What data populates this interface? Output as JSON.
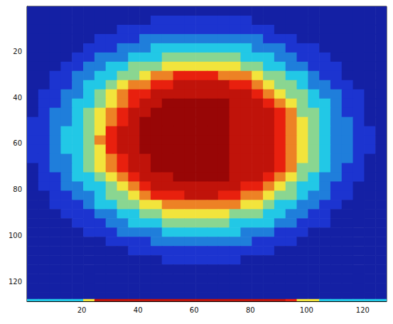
{
  "chart_data": {
    "type": "heatmap",
    "x_edges": [
      0.5,
      4.5,
      8.5,
      12.5,
      16.5,
      20.5,
      24.5,
      28.5,
      32.5,
      36.5,
      40.5,
      44.5,
      48.5,
      52.5,
      56.5,
      60.5,
      64.5,
      68.5,
      72.5,
      76.5,
      80.5,
      84.5,
      88.5,
      92.5,
      96.5,
      100.5,
      104.5,
      108.5,
      112.5,
      116.5,
      120.5,
      124.5,
      128.5
    ],
    "y_edges": [
      0.5,
      4.5,
      8.5,
      12.5,
      16.5,
      20.5,
      24.5,
      28.5,
      32.5,
      36.5,
      40.5,
      44.5,
      48.5,
      52.5,
      56.5,
      60.5,
      64.5,
      68.5,
      72.5,
      76.5,
      80.5,
      84.5,
      88.5,
      92.5,
      96.5,
      100.5,
      104.5,
      108.5,
      112.5,
      116.5,
      120.5,
      124.5,
      127.5,
      128.5
    ],
    "cells": [
      [
        1,
        1,
        1,
        1,
        1,
        1,
        1,
        1,
        1,
        1,
        1,
        1,
        1,
        1,
        1,
        1,
        1,
        1,
        1,
        1,
        1,
        1,
        1,
        1,
        1,
        1,
        1,
        1,
        1,
        1,
        1,
        1
      ],
      [
        1,
        1,
        1,
        1,
        1,
        1,
        1,
        1,
        1,
        1,
        1,
        2,
        2,
        2,
        2,
        2,
        2,
        2,
        2,
        2,
        1,
        1,
        1,
        1,
        1,
        1,
        1,
        1,
        1,
        1,
        1,
        1
      ],
      [
        1,
        1,
        1,
        1,
        1,
        1,
        1,
        1,
        2,
        2,
        2,
        2,
        2,
        2,
        2,
        2,
        2,
        2,
        2,
        2,
        2,
        2,
        1,
        1,
        1,
        1,
        1,
        1,
        1,
        1,
        1,
        1
      ],
      [
        1,
        1,
        1,
        1,
        1,
        1,
        2,
        2,
        2,
        2,
        3,
        3,
        3,
        3,
        3,
        3,
        3,
        3,
        3,
        3,
        3,
        2,
        2,
        2,
        1,
        1,
        1,
        1,
        1,
        1,
        1,
        1
      ],
      [
        1,
        1,
        1,
        1,
        1,
        2,
        2,
        2,
        3,
        3,
        3,
        4,
        4,
        4,
        4,
        4,
        4,
        4,
        4,
        4,
        3,
        3,
        3,
        2,
        2,
        2,
        1,
        1,
        1,
        1,
        1,
        1
      ],
      [
        1,
        1,
        1,
        1,
        2,
        2,
        3,
        3,
        3,
        4,
        4,
        4,
        5,
        5,
        5,
        5,
        5,
        5,
        5,
        4,
        4,
        4,
        3,
        3,
        2,
        2,
        2,
        1,
        1,
        1,
        1,
        1
      ],
      [
        1,
        1,
        1,
        2,
        2,
        3,
        3,
        4,
        4,
        5,
        5,
        5,
        6,
        6,
        6,
        6,
        6,
        6,
        6,
        5,
        5,
        4,
        4,
        3,
        3,
        2,
        2,
        2,
        1,
        1,
        1,
        1
      ],
      [
        1,
        1,
        2,
        2,
        3,
        3,
        4,
        4,
        5,
        5,
        6,
        7,
        7,
        8,
        8,
        8,
        8,
        7,
        7,
        7,
        6,
        5,
        5,
        4,
        4,
        3,
        2,
        2,
        1,
        1,
        1,
        1
      ],
      [
        1,
        1,
        2,
        2,
        3,
        4,
        4,
        5,
        6,
        7,
        7,
        8,
        8,
        9,
        9,
        9,
        9,
        9,
        8,
        8,
        7,
        6,
        5,
        5,
        4,
        3,
        3,
        2,
        2,
        1,
        1,
        1
      ],
      [
        1,
        2,
        2,
        3,
        3,
        4,
        5,
        6,
        7,
        8,
        8,
        9,
        9,
        9,
        9,
        9,
        9,
        9,
        9,
        9,
        8,
        7,
        6,
        5,
        5,
        4,
        3,
        3,
        2,
        2,
        1,
        1
      ],
      [
        1,
        2,
        2,
        3,
        4,
        4,
        5,
        6,
        7,
        8,
        9,
        9,
        10,
        10,
        10,
        10,
        10,
        10,
        9,
        9,
        9,
        8,
        7,
        6,
        5,
        4,
        4,
        3,
        2,
        2,
        1,
        1
      ],
      [
        1,
        2,
        3,
        3,
        4,
        5,
        6,
        7,
        8,
        9,
        9,
        10,
        10,
        10,
        10,
        10,
        10,
        10,
        9,
        9,
        9,
        9,
        8,
        7,
        5,
        5,
        4,
        3,
        2,
        2,
        1,
        1
      ],
      [
        2,
        2,
        3,
        3,
        4,
        5,
        6,
        7,
        8,
        9,
        10,
        10,
        10,
        10,
        10,
        10,
        10,
        10,
        9,
        9,
        9,
        9,
        8,
        7,
        6,
        5,
        4,
        3,
        3,
        2,
        1,
        1
      ],
      [
        2,
        2,
        3,
        4,
        4,
        5,
        6,
        8,
        9,
        9,
        10,
        10,
        10,
        10,
        10,
        10,
        10,
        10,
        9,
        9,
        9,
        9,
        8,
        7,
        6,
        5,
        4,
        3,
        3,
        2,
        2,
        1
      ],
      [
        2,
        2,
        3,
        4,
        4,
        5,
        7,
        8,
        9,
        9,
        10,
        10,
        10,
        10,
        10,
        10,
        10,
        10,
        9,
        9,
        9,
        9,
        8,
        7,
        6,
        5,
        4,
        3,
        3,
        2,
        2,
        1
      ],
      [
        2,
        2,
        3,
        4,
        4,
        5,
        6,
        8,
        9,
        9,
        10,
        10,
        10,
        10,
        10,
        10,
        10,
        10,
        9,
        9,
        9,
        9,
        8,
        7,
        6,
        5,
        4,
        3,
        3,
        2,
        2,
        1
      ],
      [
        2,
        2,
        3,
        3,
        4,
        5,
        6,
        7,
        8,
        9,
        9,
        10,
        10,
        10,
        10,
        10,
        10,
        10,
        9,
        9,
        9,
        9,
        8,
        7,
        6,
        5,
        4,
        3,
        3,
        2,
        1,
        1
      ],
      [
        1,
        2,
        3,
        3,
        4,
        5,
        6,
        7,
        8,
        9,
        9,
        10,
        10,
        10,
        10,
        10,
        10,
        10,
        9,
        9,
        9,
        9,
        8,
        7,
        5,
        5,
        4,
        3,
        2,
        2,
        1,
        1
      ],
      [
        1,
        2,
        2,
        3,
        4,
        4,
        5,
        6,
        7,
        8,
        9,
        9,
        9,
        10,
        10,
        10,
        10,
        10,
        9,
        9,
        9,
        8,
        7,
        6,
        5,
        4,
        3,
        3,
        2,
        2,
        1,
        1
      ],
      [
        1,
        2,
        2,
        3,
        3,
        4,
        4,
        5,
        6,
        7,
        8,
        9,
        9,
        9,
        9,
        9,
        9,
        9,
        9,
        8,
        8,
        7,
        6,
        5,
        4,
        4,
        3,
        2,
        2,
        1,
        1,
        1
      ],
      [
        1,
        1,
        2,
        2,
        3,
        3,
        4,
        5,
        5,
        6,
        7,
        8,
        8,
        8,
        9,
        9,
        9,
        8,
        8,
        7,
        7,
        6,
        5,
        5,
        4,
        3,
        3,
        2,
        2,
        1,
        1,
        1
      ],
      [
        1,
        1,
        2,
        2,
        2,
        3,
        4,
        4,
        5,
        5,
        6,
        6,
        7,
        7,
        7,
        7,
        7,
        7,
        7,
        6,
        6,
        5,
        4,
        4,
        3,
        3,
        2,
        2,
        1,
        1,
        1,
        1
      ],
      [
        1,
        1,
        1,
        2,
        2,
        2,
        3,
        3,
        4,
        4,
        5,
        5,
        6,
        6,
        6,
        6,
        6,
        6,
        5,
        5,
        5,
        4,
        4,
        3,
        3,
        2,
        2,
        1,
        1,
        1,
        1,
        1
      ],
      [
        1,
        1,
        1,
        1,
        2,
        2,
        2,
        3,
        3,
        4,
        4,
        4,
        5,
        5,
        5,
        5,
        5,
        5,
        4,
        4,
        4,
        4,
        3,
        3,
        2,
        2,
        2,
        1,
        1,
        1,
        1,
        1
      ],
      [
        1,
        1,
        1,
        1,
        1,
        2,
        2,
        2,
        3,
        3,
        3,
        3,
        4,
        4,
        4,
        4,
        4,
        4,
        4,
        3,
        3,
        3,
        2,
        2,
        2,
        1,
        1,
        1,
        1,
        1,
        1,
        1
      ],
      [
        1,
        1,
        1,
        1,
        1,
        1,
        1,
        2,
        2,
        2,
        2,
        3,
        3,
        3,
        3,
        3,
        3,
        3,
        3,
        3,
        2,
        2,
        2,
        2,
        1,
        1,
        1,
        1,
        1,
        1,
        1,
        1
      ],
      [
        1,
        1,
        1,
        1,
        1,
        1,
        1,
        1,
        1,
        2,
        2,
        2,
        2,
        2,
        2,
        2,
        2,
        2,
        2,
        2,
        2,
        2,
        1,
        1,
        1,
        1,
        1,
        1,
        1,
        1,
        1,
        1
      ],
      [
        1,
        1,
        1,
        1,
        1,
        1,
        1,
        1,
        1,
        1,
        1,
        1,
        2,
        2,
        2,
        2,
        2,
        2,
        2,
        1,
        1,
        1,
        1,
        1,
        1,
        1,
        1,
        1,
        1,
        1,
        1,
        1
      ],
      [
        1,
        1,
        1,
        1,
        1,
        1,
        1,
        1,
        1,
        1,
        1,
        1,
        1,
        1,
        1,
        1,
        1,
        1,
        1,
        1,
        1,
        1,
        1,
        1,
        1,
        1,
        1,
        1,
        1,
        1,
        1,
        1
      ],
      [
        1,
        1,
        1,
        1,
        1,
        1,
        1,
        1,
        1,
        1,
        1,
        1,
        1,
        1,
        1,
        1,
        1,
        1,
        1,
        1,
        1,
        1,
        1,
        1,
        1,
        1,
        1,
        1,
        1,
        1,
        1,
        1
      ],
      [
        1,
        1,
        1,
        1,
        1,
        1,
        1,
        1,
        1,
        1,
        1,
        1,
        1,
        1,
        1,
        1,
        1,
        1,
        1,
        1,
        1,
        1,
        1,
        1,
        1,
        1,
        1,
        1,
        1,
        1,
        1,
        1
      ],
      [
        1,
        1,
        1,
        1,
        1,
        1,
        1,
        1,
        1,
        1,
        1,
        1,
        1,
        1,
        1,
        1,
        1,
        1,
        1,
        1,
        1,
        1,
        1,
        1,
        1,
        1,
        1,
        1,
        1,
        1,
        1,
        1
      ],
      [
        4,
        4,
        4,
        4,
        4,
        6,
        9,
        9,
        9,
        9,
        9,
        9,
        9,
        9,
        9,
        9,
        9,
        9,
        9,
        9,
        9,
        9,
        9,
        8,
        6,
        6,
        4,
        4,
        4,
        4,
        4,
        4
      ]
    ],
    "value_range": [
      0,
      10
    ],
    "xlim": [
      0.5,
      128.5
    ],
    "ylim": [
      0.5,
      128.5
    ],
    "xticks": [
      20,
      40,
      60,
      80,
      100,
      120
    ],
    "yticks": [
      20,
      40,
      60,
      80,
      100,
      120
    ],
    "grid": false
  }
}
